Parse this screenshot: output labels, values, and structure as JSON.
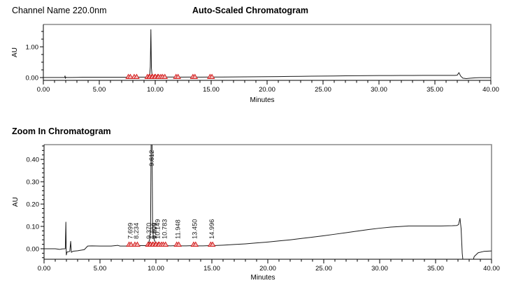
{
  "header": {
    "channel_label": "Channel Name 220.0nm",
    "auto_scaled_title": "Auto-Scaled Chromatogram"
  },
  "zoom_section_title": "Zoom In Chromatogram",
  "chart_data": [
    {
      "type": "line",
      "title": "Auto-Scaled Chromatogram",
      "xlabel": "Minutes",
      "ylabel": "AU",
      "xlim": [
        0,
        40
      ],
      "ylim": [
        -0.091,
        1.727
      ],
      "x_ticks": [
        {
          "v": 0,
          "label": "0.00"
        },
        {
          "v": 5,
          "label": "5.00"
        },
        {
          "v": 10,
          "label": "10.00"
        },
        {
          "v": 15,
          "label": "15.00"
        },
        {
          "v": 20,
          "label": "20.00"
        },
        {
          "v": 25,
          "label": "25.00"
        },
        {
          "v": 30,
          "label": "30.00"
        },
        {
          "v": 35,
          "label": "35.00"
        },
        {
          "v": 40,
          "label": "40.00"
        }
      ],
      "x_minor_step": 1,
      "y_ticks": [
        {
          "v": 0.0,
          "label": "0.00"
        },
        {
          "v": 1.0,
          "label": "1.00"
        }
      ],
      "y_minor_step": 0.25,
      "line_color": "#1a1a1a",
      "frame_color": "#8a8a8a",
      "marker_stroke": "#d42020",
      "marker_fill": "#f3b9b9",
      "integration_markers": [
        7.6,
        7.78,
        8.12,
        8.34,
        9.3,
        9.46,
        9.52,
        9.7,
        9.76,
        9.95,
        10.02,
        10.22,
        10.3,
        10.5,
        10.66,
        10.86,
        11.86,
        12.04,
        13.37,
        13.55,
        14.9,
        15.07
      ],
      "peak_labels": [],
      "trace": [
        [
          0,
          0.003
        ],
        [
          1.5,
          0.003
        ],
        [
          1.9,
          0.003
        ],
        [
          1.94,
          0.055
        ],
        [
          1.97,
          -0.028
        ],
        [
          2.02,
          0.01
        ],
        [
          2.1,
          0.002
        ],
        [
          2.5,
          0.004
        ],
        [
          3.0,
          0.007
        ],
        [
          3.5,
          0.01
        ],
        [
          4.0,
          0.011
        ],
        [
          5,
          0.011
        ],
        [
          6,
          0.011
        ],
        [
          7,
          0.012
        ],
        [
          7.55,
          0.012
        ],
        [
          7.7,
          0.016
        ],
        [
          7.85,
          0.012
        ],
        [
          8.1,
          0.013
        ],
        [
          8.23,
          0.017
        ],
        [
          8.4,
          0.013
        ],
        [
          9.0,
          0.013
        ],
        [
          9.3,
          0.015
        ],
        [
          9.4,
          0.022
        ],
        [
          9.5,
          0.05
        ],
        [
          9.56,
          0.35
        ],
        [
          9.612,
          1.56
        ],
        [
          9.66,
          0.3
        ],
        [
          9.72,
          0.06
        ],
        [
          9.81,
          0.035
        ],
        [
          9.9,
          0.028
        ],
        [
          10.0,
          0.022
        ],
        [
          10.15,
          0.022
        ],
        [
          10.3,
          0.019
        ],
        [
          10.5,
          0.019
        ],
        [
          10.8,
          0.017
        ],
        [
          11.0,
          0.016
        ],
        [
          11.95,
          0.017
        ],
        [
          12.1,
          0.015
        ],
        [
          13.45,
          0.016
        ],
        [
          14.0,
          0.015
        ],
        [
          15.0,
          0.016
        ],
        [
          16,
          0.017
        ],
        [
          17,
          0.019
        ],
        [
          18,
          0.022
        ],
        [
          19,
          0.025
        ],
        [
          20,
          0.028
        ],
        [
          21,
          0.032
        ],
        [
          22,
          0.036
        ],
        [
          23,
          0.04
        ],
        [
          24,
          0.044
        ],
        [
          25,
          0.048
        ],
        [
          26,
          0.052
        ],
        [
          27,
          0.056
        ],
        [
          28,
          0.059
        ],
        [
          29,
          0.062
        ],
        [
          30,
          0.064
        ],
        [
          31,
          0.066
        ],
        [
          32,
          0.068
        ],
        [
          33,
          0.069
        ],
        [
          34,
          0.07
        ],
        [
          35,
          0.07
        ],
        [
          36,
          0.071
        ],
        [
          36.8,
          0.072
        ],
        [
          37.0,
          0.078
        ],
        [
          37.15,
          0.16
        ],
        [
          37.3,
          0.05
        ],
        [
          37.5,
          -0.02
        ],
        [
          37.8,
          -0.035
        ],
        [
          38.2,
          -0.02
        ],
        [
          38.6,
          -0.008
        ],
        [
          39.0,
          -0.003
        ],
        [
          40,
          -0.002
        ]
      ]
    },
    {
      "type": "line",
      "title": "Zoom In Chromatogram",
      "xlabel": "Minutes",
      "ylabel": "AU",
      "xlim": [
        0,
        40
      ],
      "ylim": [
        -0.047,
        0.466
      ],
      "x_ticks": [
        {
          "v": 0,
          "label": "0.00"
        },
        {
          "v": 5,
          "label": "5.00"
        },
        {
          "v": 10,
          "label": "10.00"
        },
        {
          "v": 15,
          "label": "15.00"
        },
        {
          "v": 20,
          "label": "20.00"
        },
        {
          "v": 25,
          "label": "25.00"
        },
        {
          "v": 30,
          "label": "30.00"
        },
        {
          "v": 35,
          "label": "35.00"
        },
        {
          "v": 40,
          "label": "40.00"
        }
      ],
      "x_minor_step": 1,
      "y_ticks": [
        {
          "v": 0.0,
          "label": "0.00"
        },
        {
          "v": 0.1,
          "label": "0.10"
        },
        {
          "v": 0.2,
          "label": "0.20"
        },
        {
          "v": 0.3,
          "label": "0.30"
        },
        {
          "v": 0.4,
          "label": "0.40"
        }
      ],
      "y_minor_step": 0.02,
      "line_color": "#1a1a1a",
      "frame_color": "#8a8a8a",
      "marker_stroke": "#d42020",
      "marker_fill": "#f3b9b9",
      "integration_markers": [
        7.6,
        7.78,
        8.12,
        8.34,
        9.3,
        9.46,
        9.52,
        9.7,
        9.76,
        9.95,
        10.02,
        10.22,
        10.3,
        10.5,
        10.66,
        10.86,
        11.86,
        12.04,
        13.37,
        13.55,
        14.9,
        15.07
      ],
      "peak_labels": [
        {
          "t": 7.699,
          "text": "7.699",
          "tall": false
        },
        {
          "t": 8.234,
          "text": "8.234",
          "tall": false
        },
        {
          "t": 9.37,
          "text": "9.370",
          "tall": false
        },
        {
          "t": 9.612,
          "text": "9.612",
          "tall": true
        },
        {
          "t": 9.809,
          "text": "9.809",
          "tall": false
        },
        {
          "t": 9.899,
          "text": "9.899",
          "tall": false
        },
        {
          "t": 10.149,
          "text": "10.149",
          "tall": false
        },
        {
          "t": 10.783,
          "text": "10.783",
          "tall": false
        },
        {
          "t": 11.948,
          "text": "11.948",
          "tall": false
        },
        {
          "t": 13.45,
          "text": "13.450",
          "tall": false
        },
        {
          "t": 14.996,
          "text": "14.996",
          "tall": false
        }
      ],
      "trace": [
        [
          0,
          0.0
        ],
        [
          1.0,
          0.0
        ],
        [
          1.4,
          -0.003
        ],
        [
          1.6,
          -0.001
        ],
        [
          1.9,
          0.0
        ],
        [
          1.95,
          0.119
        ],
        [
          1.99,
          -0.028
        ],
        [
          2.05,
          -0.015
        ],
        [
          2.3,
          -0.012
        ],
        [
          2.38,
          0.033
        ],
        [
          2.44,
          -0.016
        ],
        [
          2.6,
          -0.011
        ],
        [
          3.0,
          -0.009
        ],
        [
          3.6,
          -0.004
        ],
        [
          3.9,
          0.012
        ],
        [
          4.3,
          0.013
        ],
        [
          5,
          0.012
        ],
        [
          5.5,
          0.012
        ],
        [
          6,
          0.012
        ],
        [
          6.6,
          0.015
        ],
        [
          6.8,
          0.012
        ],
        [
          7.3,
          0.012
        ],
        [
          7.55,
          0.013
        ],
        [
          7.699,
          0.019
        ],
        [
          7.85,
          0.013
        ],
        [
          8.1,
          0.014
        ],
        [
          8.234,
          0.02
        ],
        [
          8.4,
          0.014
        ],
        [
          9.0,
          0.014
        ],
        [
          9.25,
          0.016
        ],
        [
          9.37,
          0.03
        ],
        [
          9.45,
          0.045
        ],
        [
          9.52,
          0.09
        ],
        [
          9.57,
          0.5
        ],
        [
          9.612,
          0.52
        ],
        [
          9.65,
          0.5
        ],
        [
          9.7,
          0.12
        ],
        [
          9.76,
          0.055
        ],
        [
          9.809,
          0.048
        ],
        [
          9.86,
          0.038
        ],
        [
          9.899,
          0.036
        ],
        [
          9.97,
          0.025
        ],
        [
          10.05,
          0.02
        ],
        [
          10.149,
          0.024
        ],
        [
          10.25,
          0.017
        ],
        [
          10.4,
          0.016
        ],
        [
          10.5,
          0.015
        ],
        [
          10.7,
          0.015
        ],
        [
          10.783,
          0.019
        ],
        [
          10.9,
          0.014
        ],
        [
          11.3,
          0.013
        ],
        [
          11.86,
          0.014
        ],
        [
          11.948,
          0.018
        ],
        [
          12.08,
          0.013
        ],
        [
          12.7,
          0.013
        ],
        [
          13.37,
          0.014
        ],
        [
          13.45,
          0.018
        ],
        [
          13.58,
          0.013
        ],
        [
          14.2,
          0.013
        ],
        [
          14.88,
          0.014
        ],
        [
          14.996,
          0.019
        ],
        [
          15.12,
          0.014
        ],
        [
          16,
          0.016
        ],
        [
          17,
          0.019
        ],
        [
          18,
          0.022
        ],
        [
          19,
          0.026
        ],
        [
          20,
          0.03
        ],
        [
          21,
          0.035
        ],
        [
          22,
          0.04
        ],
        [
          23,
          0.046
        ],
        [
          24,
          0.052
        ],
        [
          25,
          0.058
        ],
        [
          26,
          0.065
        ],
        [
          27,
          0.072
        ],
        [
          28,
          0.079
        ],
        [
          29,
          0.086
        ],
        [
          30,
          0.092
        ],
        [
          31,
          0.097
        ],
        [
          32,
          0.1
        ],
        [
          32.6,
          0.102
        ],
        [
          33.5,
          0.102
        ],
        [
          34.5,
          0.102
        ],
        [
          35.5,
          0.102
        ],
        [
          36.5,
          0.103
        ],
        [
          36.9,
          0.104
        ],
        [
          37.05,
          0.108
        ],
        [
          37.18,
          0.136
        ],
        [
          37.28,
          0.09
        ],
        [
          37.38,
          -0.02
        ],
        [
          37.5,
          -0.08
        ],
        [
          38.2,
          -0.08
        ],
        [
          38.45,
          -0.035
        ],
        [
          38.8,
          -0.018
        ],
        [
          39.3,
          -0.012
        ],
        [
          40,
          -0.01
        ]
      ]
    }
  ]
}
